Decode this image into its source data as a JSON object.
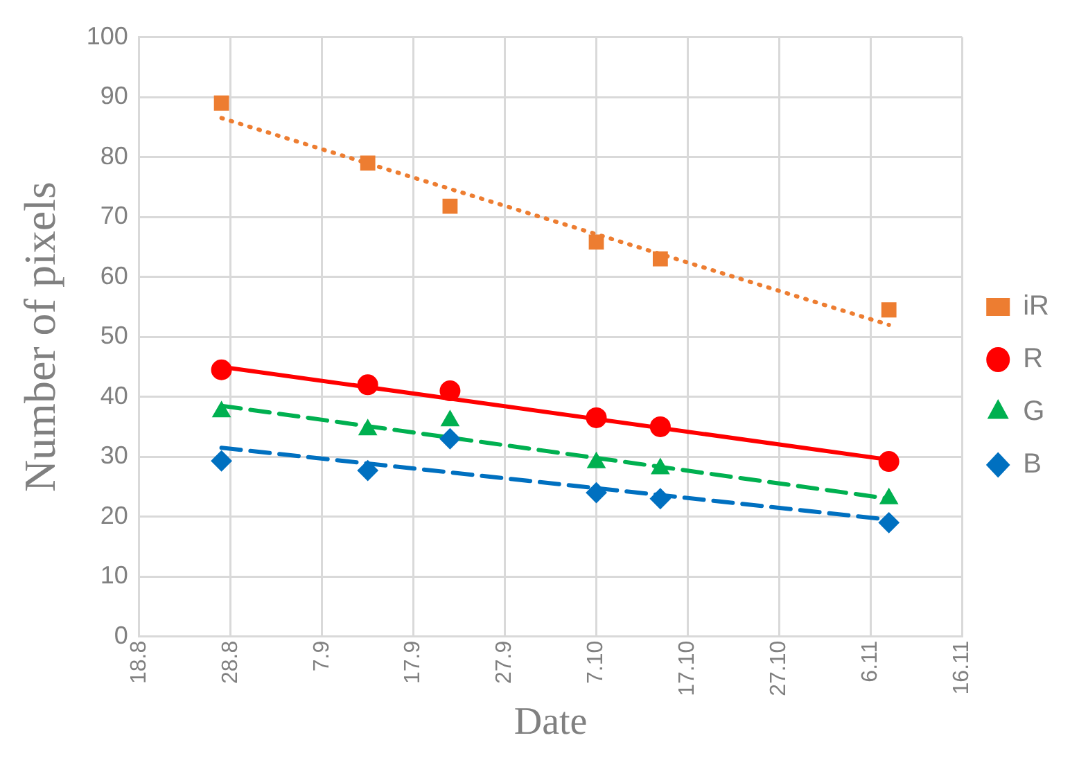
{
  "chart_data": {
    "type": "scatter",
    "xlabel": "Date",
    "ylabel": "Number of pixels",
    "xlim": [
      "--08-18",
      "--11-16"
    ],
    "xticks": [
      {
        "value": "--08-18",
        "label": "18.8"
      },
      {
        "value": "--08-28",
        "label": "28.8"
      },
      {
        "value": "--09-07",
        "label": "7.9"
      },
      {
        "value": "--09-17",
        "label": "17.9"
      },
      {
        "value": "--09-27",
        "label": "27.9"
      },
      {
        "value": "--10-07",
        "label": "7.10"
      },
      {
        "value": "--10-17",
        "label": "17.10"
      },
      {
        "value": "--10-27",
        "label": "27.10"
      },
      {
        "value": "--11-06",
        "label": "6.11"
      },
      {
        "value": "--11-16",
        "label": "16.11"
      }
    ],
    "ylim": [
      0,
      100
    ],
    "yticks": [
      0,
      10,
      20,
      30,
      40,
      50,
      60,
      70,
      80,
      90,
      100
    ],
    "grid": true,
    "legend": "right",
    "series": [
      {
        "name": "iR",
        "marker": "square",
        "color": "#ed7d31",
        "x": [
          "--08-27",
          "--09-12",
          "--09-21",
          "--10-07",
          "--10-14",
          "--11-08"
        ],
        "values": [
          89,
          79,
          71.8,
          65.8,
          63,
          54.5
        ]
      },
      {
        "name": "R",
        "marker": "circle",
        "color": "#ff0000",
        "x": [
          "--08-27",
          "--09-12",
          "--09-21",
          "--10-07",
          "--10-14",
          "--11-08"
        ],
        "values": [
          44.5,
          42,
          41,
          36.5,
          35,
          29.2
        ]
      },
      {
        "name": "G",
        "marker": "triangle",
        "color": "#00b050",
        "x": [
          "--08-27",
          "--09-12",
          "--09-21",
          "--10-07",
          "--10-14",
          "--11-08"
        ],
        "values": [
          37.5,
          34.5,
          36,
          29,
          28,
          23
        ]
      },
      {
        "name": "B",
        "marker": "diamond",
        "color": "#0070c0",
        "x": [
          "--08-27",
          "--09-12",
          "--09-21",
          "--10-07",
          "--10-14",
          "--11-08"
        ],
        "values": [
          29.3,
          27.7,
          33,
          24,
          23,
          19
        ]
      },
      {
        "type": "line",
        "line_style": "dotted",
        "color": "#ed7d31",
        "x": [
          "--08-27",
          "--11-08"
        ],
        "values": [
          86.5,
          52
        ]
      },
      {
        "type": "line",
        "line_style": "solid",
        "color": "#ff0000",
        "x": [
          "--08-27",
          "--11-08"
        ],
        "values": [
          45,
          29.5
        ]
      },
      {
        "type": "line",
        "line_style": "dashed",
        "color": "#00b050",
        "x": [
          "--08-27",
          "--11-08"
        ],
        "values": [
          38.5,
          23
        ]
      },
      {
        "type": "line",
        "line_style": "dashed",
        "color": "#0070c0",
        "x": [
          "--08-27",
          "--11-08"
        ],
        "values": [
          31.5,
          19.5
        ]
      }
    ]
  }
}
